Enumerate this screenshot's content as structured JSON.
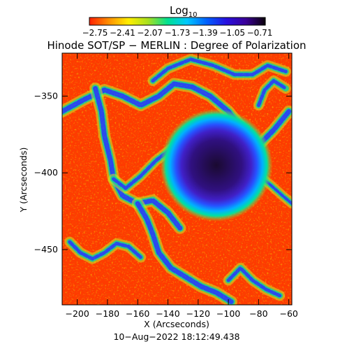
{
  "chart_data": {
    "type": "heatmap",
    "title": "Hinode SOT/SP − MERLIN : Degree of Polarization",
    "colorbar": {
      "label_main": "Log",
      "label_sub": "10",
      "ticks": [
        "−2.75",
        "−2.41",
        "−2.07",
        "−1.73",
        "−1.39",
        "−1.05",
        "−0.71"
      ],
      "range": [
        -2.75,
        -0.71
      ],
      "colormap": [
        "#ff2000",
        "#ff9000",
        "#ffee00",
        "#a8e020",
        "#00e090",
        "#00c8ff",
        "#0060ff",
        "#2810e0",
        "#3a0098",
        "#0a0008"
      ]
    },
    "xlabel": "X (Arcseconds)",
    "ylabel": "Y (Arcseconds)",
    "xlim": [
      -210,
      -58
    ],
    "ylim": [
      -486,
      -322
    ],
    "xticks": [
      -200,
      -180,
      -160,
      -140,
      -120,
      -100,
      -80,
      -60
    ],
    "xtick_labels": [
      "−200",
      "−180",
      "−160",
      "−140",
      "−120",
      "−100",
      "−80",
      "−60"
    ],
    "yticks": [
      -350,
      -400,
      -450
    ],
    "ytick_labels": [
      "−350",
      "−400",
      "−450"
    ],
    "features": {
      "sunspot_center": [
        -108,
        -395
      ],
      "sunspot_radius": 12,
      "background_log": -2.65,
      "network_lanes_log": -1.2
    },
    "timestamp": "10−Aug−2022 18:12:49.438"
  }
}
